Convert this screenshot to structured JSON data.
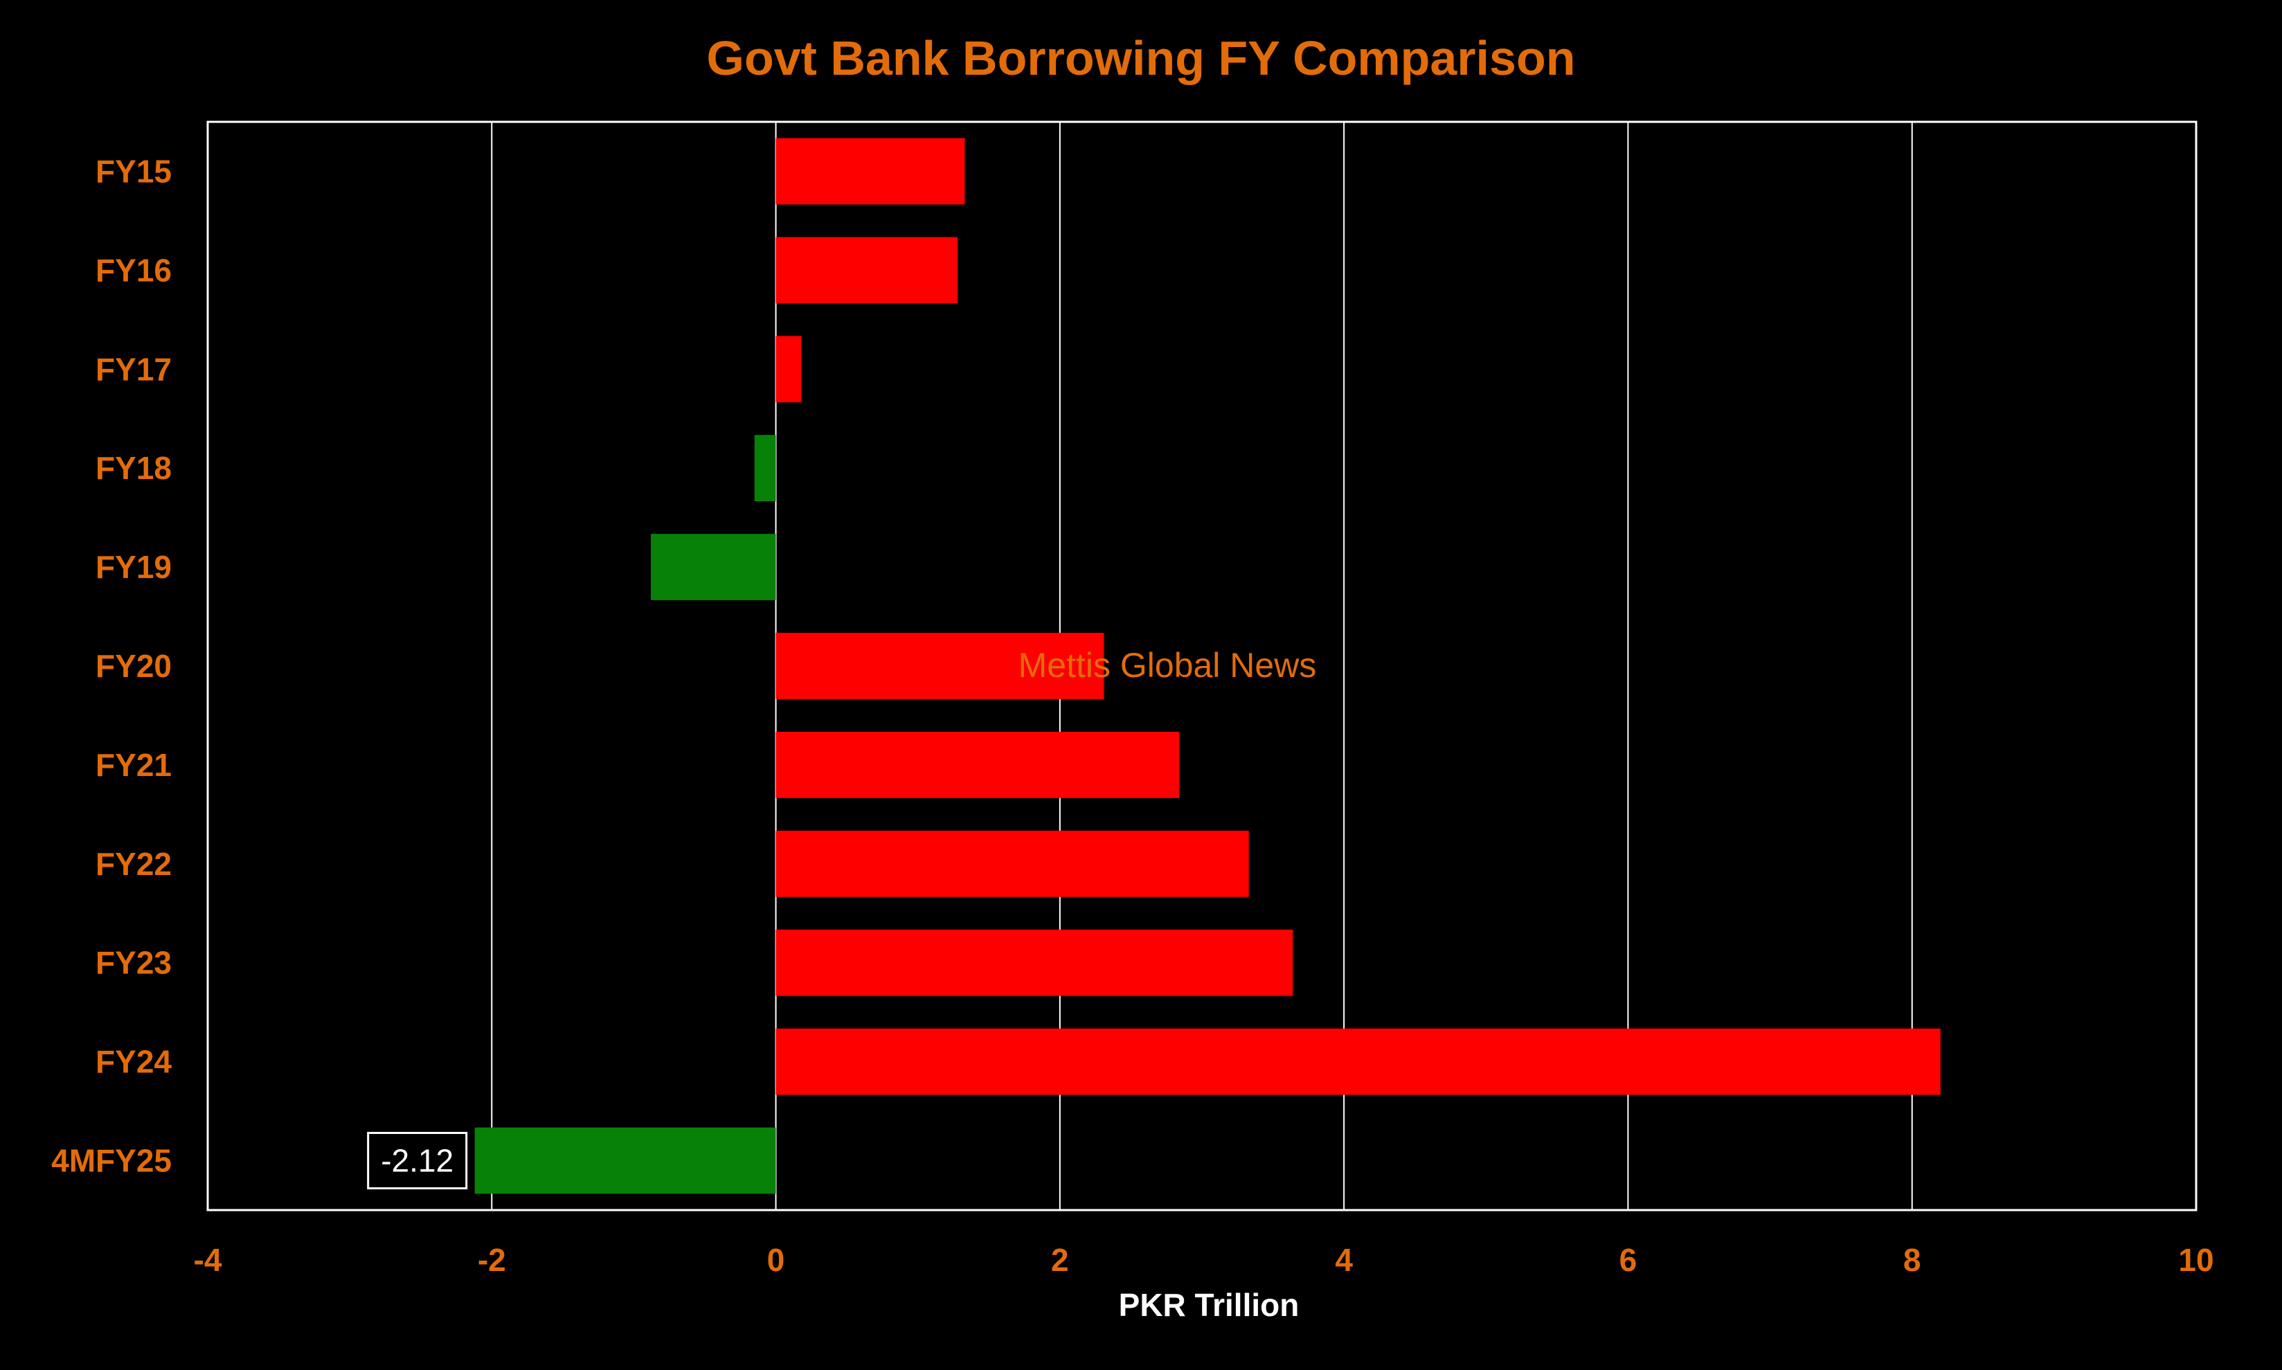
{
  "chart_data": {
    "type": "bar",
    "orientation": "horizontal",
    "title": "Govt Bank Borrowing FY Comparison",
    "xlabel": "PKR Trillion",
    "ylabel": "",
    "categories": [
      "FY15",
      "FY16",
      "FY17",
      "FY18",
      "FY19",
      "FY20",
      "FY21",
      "FY22",
      "FY23",
      "FY24",
      "4MFY25"
    ],
    "values": [
      1.33,
      1.28,
      0.18,
      -0.15,
      -0.88,
      2.31,
      2.84,
      3.33,
      3.64,
      8.2,
      -2.12
    ],
    "xlim": [
      -4,
      10
    ],
    "xticks": [
      -4,
      -2,
      0,
      2,
      4,
      6,
      8,
      10
    ],
    "tick_labels": [
      "-4",
      "-2",
      "0",
      "2",
      "4",
      "6",
      "8",
      "10"
    ],
    "grid": true,
    "legend": "none",
    "data_labels": [
      {
        "category": "4MFY25",
        "text": "-2.12"
      }
    ],
    "annotation": "Mettis Global News",
    "colors": {
      "positive": "#ff0000",
      "negative": "#078207",
      "text": "#e36c0a",
      "axis_title": "#ffffff",
      "background": "#000000",
      "grid": "#ffffff"
    }
  }
}
